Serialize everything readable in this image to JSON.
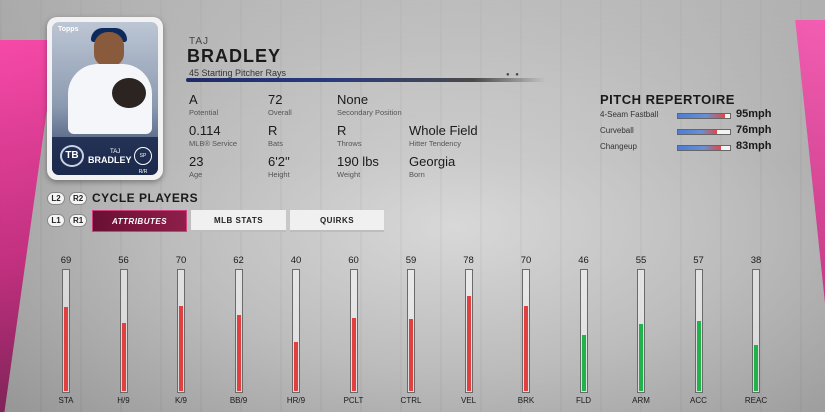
{
  "colors": {
    "accent_pink": "#d2357f",
    "bar_red": "#e04040",
    "bar_green": "#22b24c",
    "tab_active": "#7a1440"
  },
  "card": {
    "brand": "Topps",
    "team_abbrev": "TB",
    "last_name": "BRADLEY",
    "first_name": "TAJ",
    "position": "SP R/R"
  },
  "player": {
    "first_name": "TAJ",
    "last_name": "BRADLEY",
    "subline": "45  Starting Pitcher  Rays"
  },
  "attributes": [
    {
      "value": "A",
      "label": "Potential"
    },
    {
      "value": "72",
      "label": "Overall"
    },
    {
      "value": "None",
      "label": "Secondary Position"
    },
    {
      "value": "0.114",
      "label": "MLB® Service"
    },
    {
      "value": "R",
      "label": "Bats"
    },
    {
      "value": "R",
      "label": "Throws"
    },
    {
      "value": "Whole Field",
      "label": "Hitter Tendency"
    },
    {
      "value": "23",
      "label": "Age"
    },
    {
      "value": "6'2''",
      "label": "Height"
    },
    {
      "value": "190 lbs",
      "label": "Weight"
    },
    {
      "value": "Georgia",
      "label": "Born"
    }
  ],
  "pitch_repertoire": {
    "title": "PITCH REPERTOIRE",
    "pitches": [
      {
        "name": "4-Seam Fastball",
        "speed": "95mph",
        "level": 0.9
      },
      {
        "name": "Curveball",
        "speed": "76mph",
        "level": 0.75
      },
      {
        "name": "Changeup",
        "speed": "83mph",
        "level": 0.82
      }
    ]
  },
  "controls": {
    "l2": "L2",
    "r2": "R2",
    "l1": "L1",
    "r1": "R1",
    "cycle_label": "CYCLE PLAYERS"
  },
  "tabs": [
    {
      "label": "ATTRIBUTES",
      "active": true
    },
    {
      "label": "MLB STATS",
      "active": false
    },
    {
      "label": "QUIRKS",
      "active": false
    }
  ],
  "ratings": [
    {
      "label": "STA",
      "value": 69,
      "color": "red"
    },
    {
      "label": "H/9",
      "value": 56,
      "color": "red"
    },
    {
      "label": "K/9",
      "value": 70,
      "color": "red"
    },
    {
      "label": "BB/9",
      "value": 62,
      "color": "red"
    },
    {
      "label": "HR/9",
      "value": 40,
      "color": "red"
    },
    {
      "label": "PCLT",
      "value": 60,
      "color": "red"
    },
    {
      "label": "CTRL",
      "value": 59,
      "color": "red"
    },
    {
      "label": "VEL",
      "value": 78,
      "color": "red"
    },
    {
      "label": "BRK",
      "value": 70,
      "color": "red"
    },
    {
      "label": "FLD",
      "value": 46,
      "color": "green"
    },
    {
      "label": "ARM",
      "value": 55,
      "color": "green"
    },
    {
      "label": "ACC",
      "value": 57,
      "color": "green"
    },
    {
      "label": "REAC",
      "value": 38,
      "color": "green"
    }
  ]
}
